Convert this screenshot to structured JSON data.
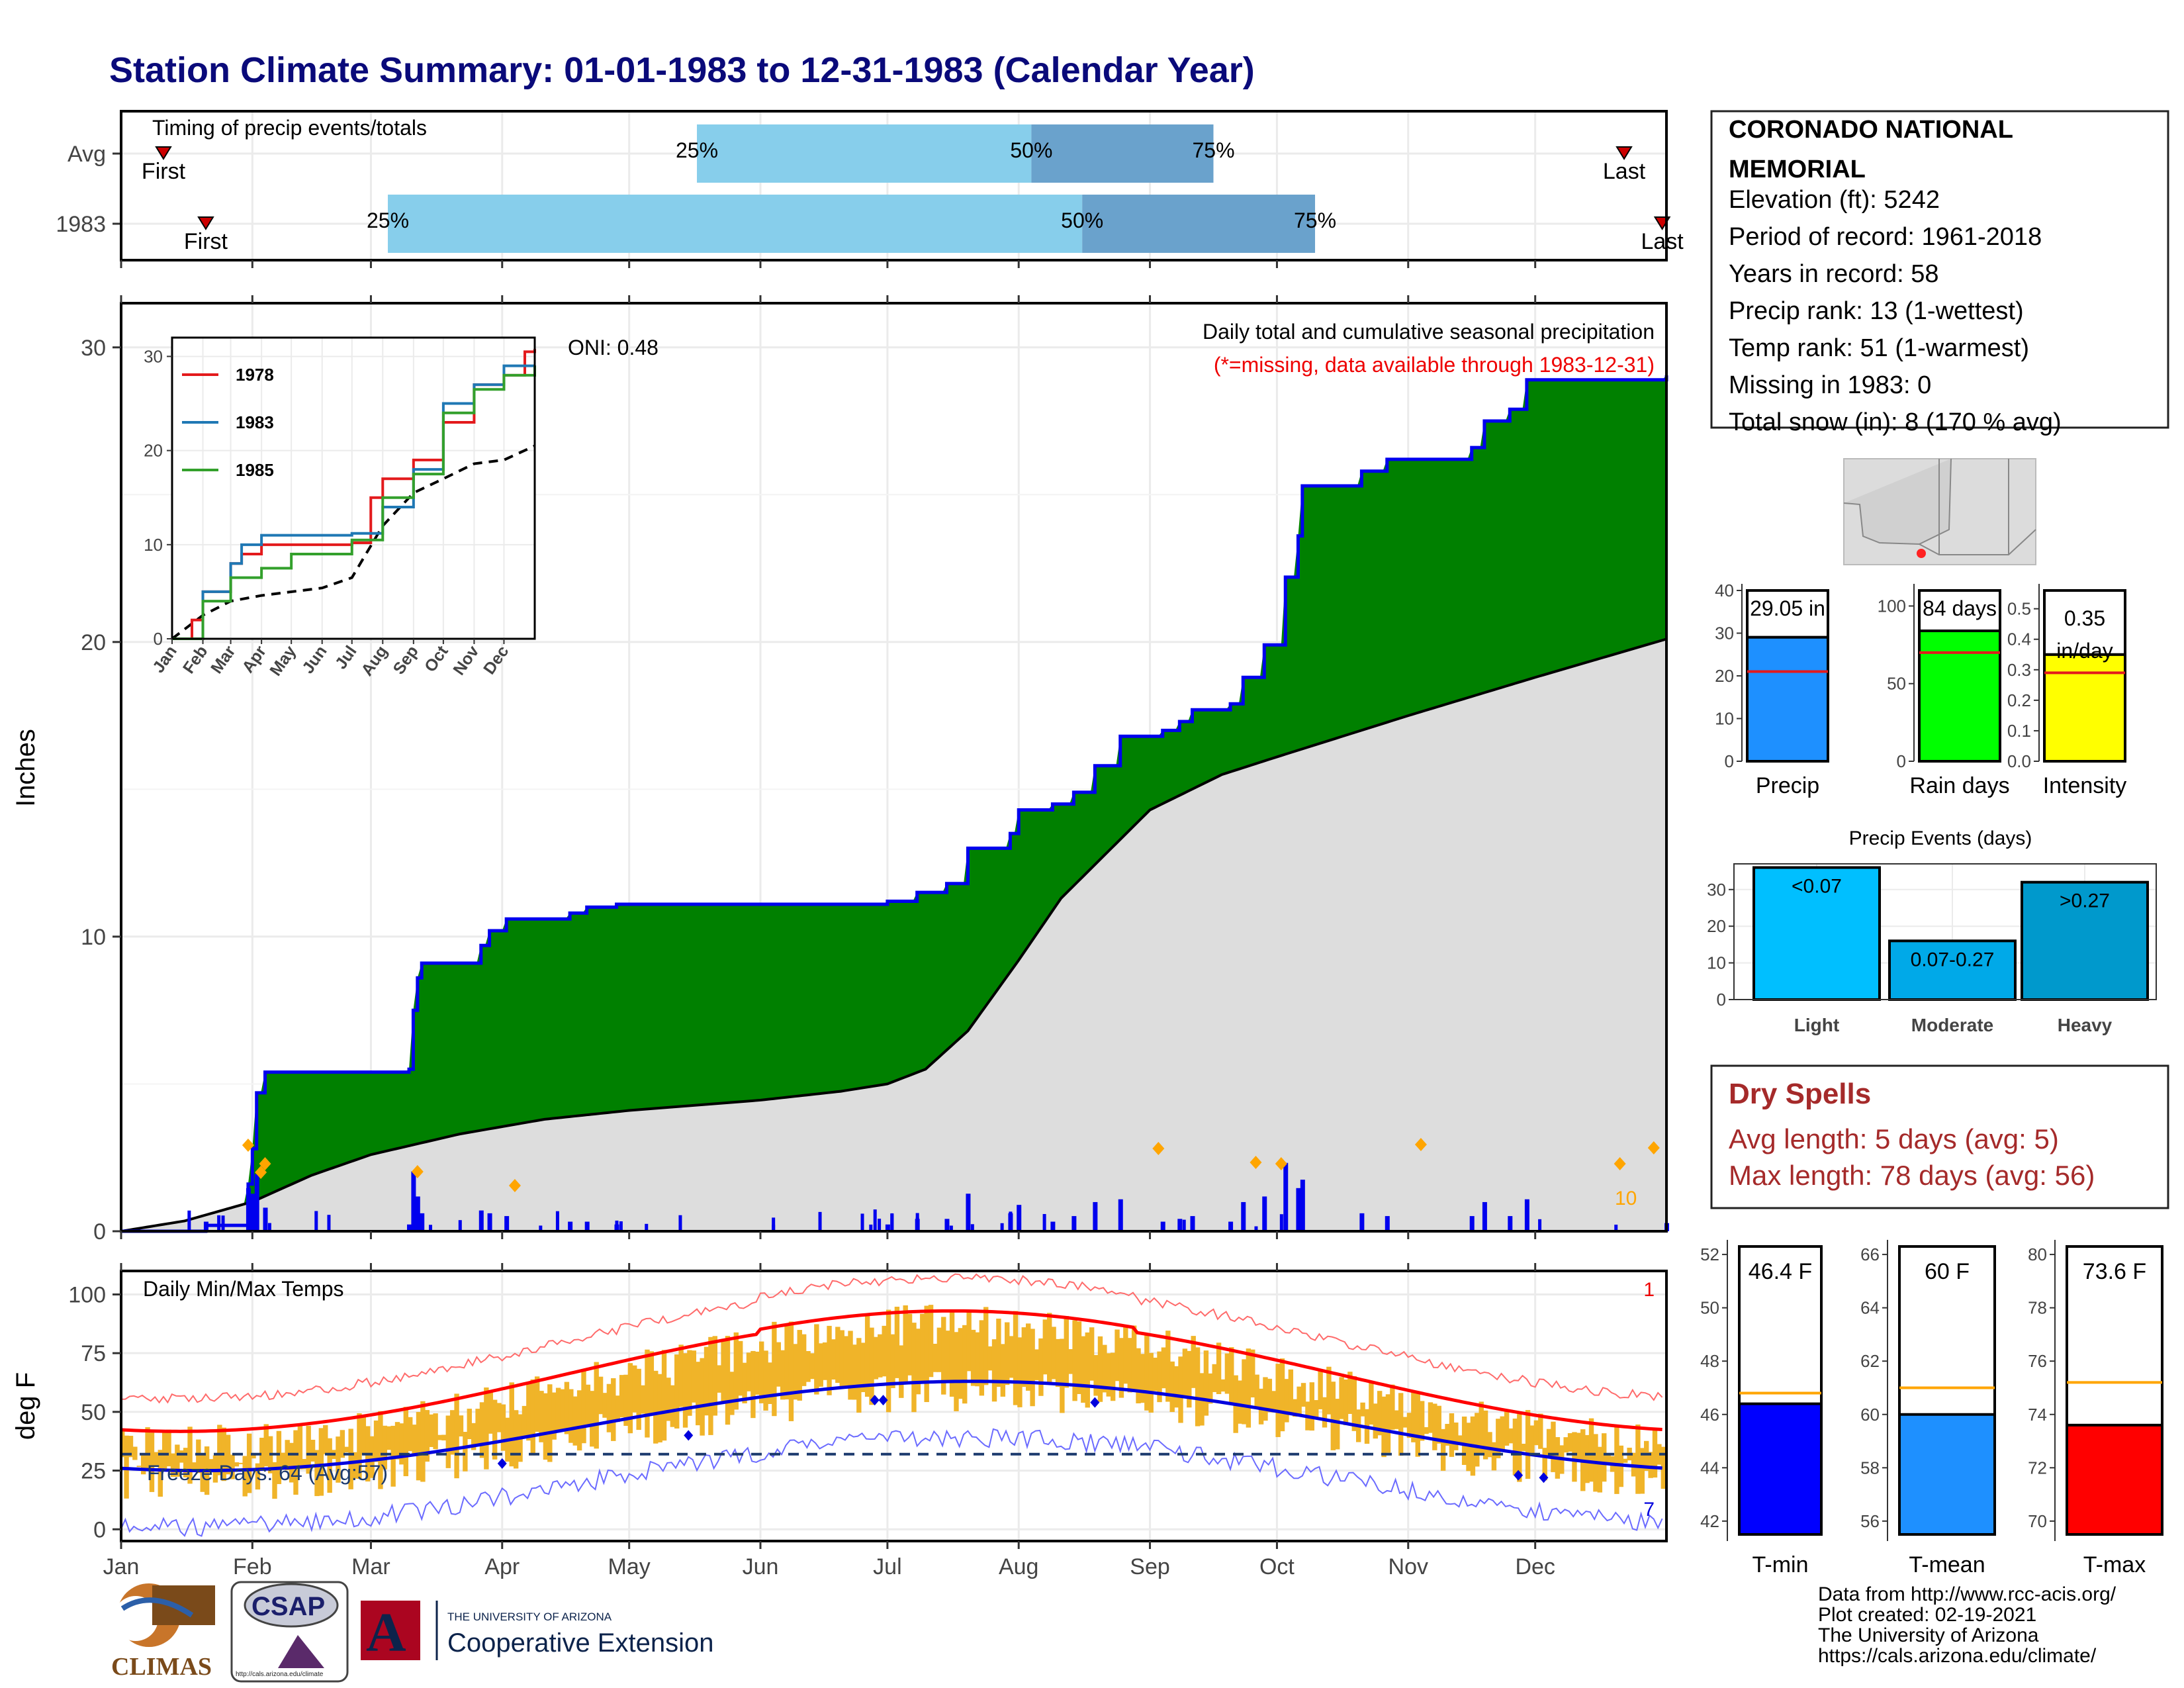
{
  "title": "Station Climate Summary: 01-01-1983 to 12-31-1983 (Calendar Year)",
  "months": [
    "Jan",
    "Feb",
    "Mar",
    "Apr",
    "May",
    "Jun",
    "Jul",
    "Aug",
    "Sep",
    "Oct",
    "Nov",
    "Dec"
  ],
  "timing": {
    "label": "Timing of precip events/totals",
    "rows": [
      {
        "name": "Avg",
        "first_day": 10,
        "q25_day": 136,
        "q50_day": 215,
        "q75_day": 258,
        "last_day": 355
      },
      {
        "name": "1983",
        "first_day": 20,
        "q25_day": 63,
        "q50_day": 227,
        "q75_day": 282,
        "last_day": 364
      }
    ],
    "first_label": "First",
    "last_label": "Last",
    "q25_label": "25%",
    "q50_label": "50%",
    "q75_label": "75%",
    "colors": {
      "light": "#87ceeb",
      "dark": "#6aa2cc",
      "marker": "#cc0000"
    }
  },
  "info": {
    "station": "CORONADO NATIONAL MEMORIAL",
    "lines": [
      "Elevation (ft): 5242",
      "Period of record: 1961-2018",
      "Years in record: 58",
      "Precip rank: 13 (1-wettest)",
      "Temp rank: 51 (1-warmest)",
      "Missing in 1983: 0",
      "Total snow (in): 8 (170 % avg)"
    ]
  },
  "precip_panel": {
    "ylabel": "Inches",
    "oni": "ONI: 0.48",
    "caption": "Daily total and cumulative seasonal precipitation",
    "missing_note": "(*=missing, data available through 1983-12-31)",
    "corner_count": "10",
    "colors": {
      "surplus": "#008000",
      "deficit": "#8b5a1a",
      "normal": "#dddddd",
      "line": "#0000ee",
      "bars": "#0000ee",
      "marker": "#ffa500"
    }
  },
  "inset": {
    "legend": [
      {
        "name": "1978",
        "color": "#e31a1c"
      },
      {
        "name": "1983",
        "color": "#1f78b4"
      },
      {
        "name": "1985",
        "color": "#33a02c"
      }
    ]
  },
  "bars_small": [
    {
      "label": "Precip",
      "value_text": "29.05 in",
      "value": 29.05,
      "avg": 21,
      "ymax": 40,
      "ticks": [
        0,
        10,
        20,
        30,
        40
      ],
      "color": "#1e90ff"
    },
    {
      "label": "Rain days",
      "value_text": "84 days",
      "value": 84,
      "avg": 70,
      "ymax": 110,
      "ticks": [
        0,
        50,
        100
      ],
      "color": "#00ff00"
    },
    {
      "label": "Intensity",
      "value_text": "0.35 in/day",
      "value": 0.35,
      "avg": 0.29,
      "ymax": 0.56,
      "ticks": [
        "0.0",
        "0.1",
        "0.2",
        "0.3",
        "0.4",
        "0.5"
      ],
      "color": "#ffff00"
    }
  ],
  "events": {
    "title": "Precip Events (days)",
    "categories": [
      "Light",
      "Moderate",
      "Heavy"
    ],
    "labels": [
      "<0.07",
      "0.07-0.27",
      ">0.27"
    ],
    "values": [
      36,
      16,
      32
    ],
    "ymax": 37,
    "ticks": [
      0,
      10,
      20,
      30
    ],
    "colors": [
      "#00bfff",
      "#00a9e8",
      "#0099cc"
    ]
  },
  "dry_spells": {
    "title": "Dry Spells",
    "avg_line": "Avg length: 5 days (avg: 5)",
    "max_line": "Max length: 78 days (avg: 56)"
  },
  "temp_panel": {
    "ylabel": "deg F",
    "title": "Daily Min/Max Temps",
    "freeze": "Freeze Days: 64 (Avg:57)",
    "corner_top": "1",
    "corner_bottom": "7",
    "freeze_line": 32,
    "ymin": -5,
    "ymax": 110,
    "ticks": [
      0,
      25,
      50,
      75,
      100
    ]
  },
  "temp_bars": [
    {
      "label": "T-min",
      "value_text": "46.4 F",
      "value": 46.4,
      "avg": 46.8,
      "ymin": 41.5,
      "ymax": 52.3,
      "ticks": [
        42,
        44,
        46,
        48,
        50,
        52
      ],
      "color": "#0000ff"
    },
    {
      "label": "T-mean",
      "value_text": "60 F",
      "value": 60,
      "avg": 61,
      "ymin": 55.5,
      "ymax": 66.3,
      "ticks": [
        56,
        58,
        60,
        62,
        64,
        66
      ],
      "color": "#1e90ff"
    },
    {
      "label": "T-max",
      "value_text": "73.6 F",
      "value": 73.6,
      "avg": 75.2,
      "ymin": 69.5,
      "ymax": 80.3,
      "ticks": [
        70,
        72,
        74,
        76,
        78,
        80
      ],
      "color": "#ff0000"
    }
  ],
  "credits": [
    "Data from http://www.rcc-acis.org/",
    "Plot created: 02-19-2021",
    "The University of Arizona",
    "https://cals.arizona.edu/climate/"
  ],
  "logos": {
    "climas": "CLIMAS",
    "csap": "CSAP",
    "csap_url": "http://cals.arizona.edu/climate",
    "ua_small": "THE UNIVERSITY OF ARIZONA",
    "ua_big": "Cooperative Extension"
  }
}
